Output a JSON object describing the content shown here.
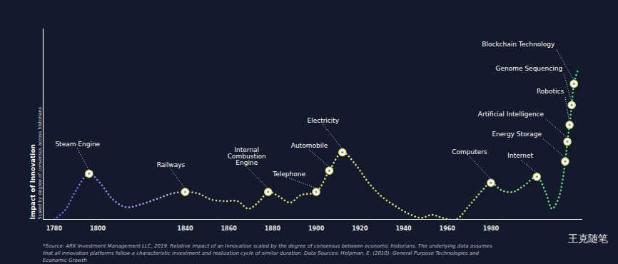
{
  "chart_data": {
    "type": "line",
    "y_label": "Impact of Innovation",
    "y_label_note": "Scaled by degree of consensus across historians",
    "x": [
      1780,
      1785,
      1790,
      1796,
      1801,
      1807,
      1813,
      1820,
      1828,
      1834,
      1840,
      1846,
      1852,
      1858,
      1864,
      1869,
      1874,
      1878,
      1883,
      1888,
      1893,
      1900,
      1906,
      1912,
      1918,
      1924,
      1930,
      1936,
      1942,
      1948,
      1953,
      1958,
      1964,
      1970,
      1976,
      1980,
      1985,
      1990,
      1995,
      2001,
      2005,
      2008,
      2011,
      2014,
      2015,
      2016,
      2017,
      2018,
      2020
    ],
    "values": [
      0,
      6,
      19,
      30,
      24,
      13,
      8,
      10,
      14,
      17,
      18,
      17,
      13,
      12,
      12,
      7,
      12,
      18,
      15,
      11,
      16,
      18,
      32,
      44,
      36,
      24,
      15,
      9,
      4,
      1,
      3,
      1,
      0,
      9,
      19,
      24,
      19,
      18,
      22,
      28,
      18,
      7,
      14,
      38,
      51,
      62,
      75,
      89,
      99
    ],
    "color": "#d8dc6a",
    "line_style": "dotted",
    "marker": "circle",
    "annotations": [
      {
        "label": "Steam Engine",
        "x": 1796,
        "y": 30
      },
      {
        "label": "Railways",
        "x": 1840,
        "y": 18
      },
      {
        "label": "Internal\nCombustion\nEngine",
        "x": 1878,
        "y": 18
      },
      {
        "label": "Telephone",
        "x": 1900,
        "y": 18
      },
      {
        "label": "Automobile",
        "x": 1906,
        "y": 32
      },
      {
        "label": "Electricity",
        "x": 1912,
        "y": 44
      },
      {
        "label": "Computers",
        "x": 1980,
        "y": 24
      },
      {
        "label": "Internet",
        "x": 2001,
        "y": 28
      },
      {
        "label": "Energy Storage",
        "x": 2014,
        "y": 38
      },
      {
        "label": "Artificial Intelligence",
        "x": 2015,
        "y": 51
      },
      {
        "label": "Robotics",
        "x": 2016,
        "y": 62
      },
      {
        "label": "Genome Sequencing",
        "x": 2017,
        "y": 75
      },
      {
        "label": "Blockchain Technology",
        "x": 2018,
        "y": 89
      }
    ],
    "xlim": [
      1775,
      2022
    ],
    "xticks": [
      1780,
      1800,
      1840,
      1860,
      1880,
      1900,
      1920,
      1940,
      1960,
      1980
    ],
    "ylim": [
      0,
      125
    ],
    "tick_labels": "x",
    "grid": false,
    "caption": "*Source: ARK Investment Management LLC, 2019. Relative impact of an Innovation scaled by the degree of consensus between economic historians. The underlying data assumes that all innovation platforms follow a characteristic investment and realization cycle of similar duration. Data Sources: Helpman, E. (2010). General Purpose Technologies and Economic Growth",
    "watermark": "王克随笔"
  }
}
